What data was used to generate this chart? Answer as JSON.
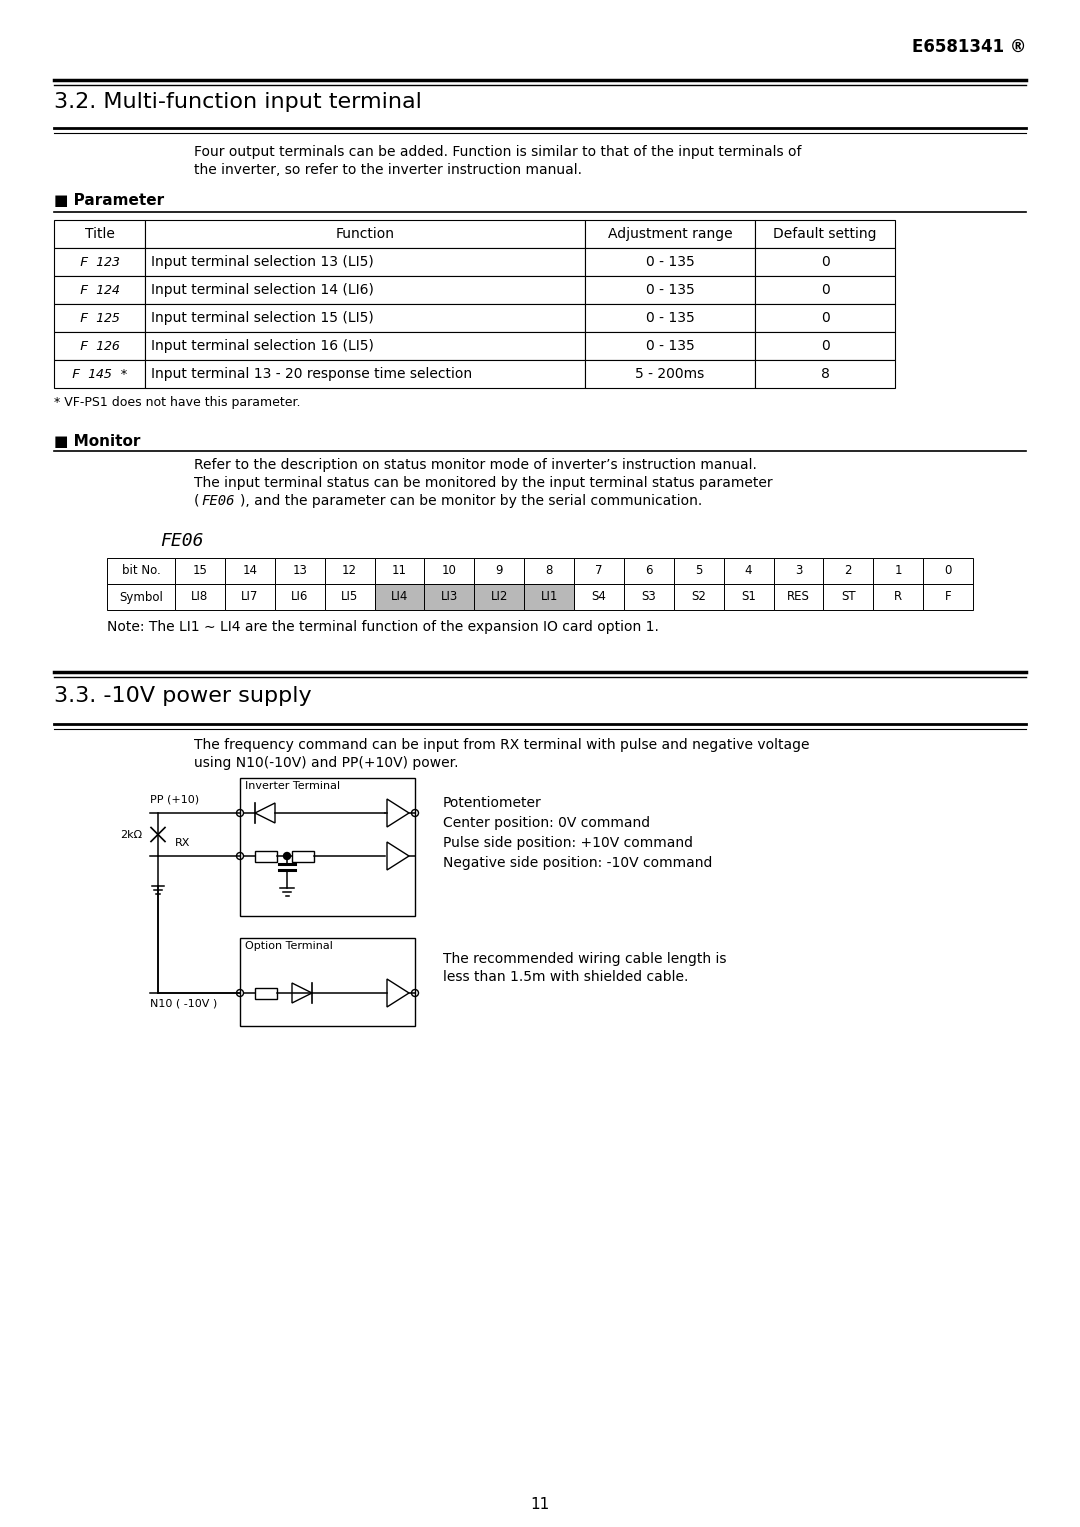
{
  "page_number": "11",
  "header_text": "E6581341 ®",
  "section1_title": "3.2. Multi-function input terminal",
  "section1_intro_line1": "Four output terminals can be added. Function is similar to that of the input terminals of",
  "section1_intro_line2": "the inverter, so refer to the inverter instruction manual.",
  "param_label": "■ Parameter",
  "table_headers": [
    "Title",
    "Function",
    "Adjustment range",
    "Default setting"
  ],
  "table_rows": [
    [
      "F 123",
      "Input terminal selection 13 (LI5)",
      "0 - 135",
      "0"
    ],
    [
      "F 124",
      "Input terminal selection 14 (LI6)",
      "0 - 135",
      "0"
    ],
    [
      "F 125",
      "Input terminal selection 15 (LI5)",
      "0 - 135",
      "0"
    ],
    [
      "F 126",
      "Input terminal selection 16 (LI5)",
      "0 - 135",
      "0"
    ],
    [
      "F 145 *",
      "Input terminal 13 - 20 response time selection",
      "5 - 200ms",
      "8"
    ]
  ],
  "footnote": "* VF-PS1 does not have this parameter.",
  "monitor_label": "■ Monitor",
  "monitor_text1": "Refer to the description on status monitor mode of inverter’s instruction manual.",
  "monitor_text2a": "The input terminal status can be monitored by the input terminal status parameter",
  "monitor_text2b": "(FE06), and the parameter can be monitor by the serial communication.",
  "fe06_label": "FE06",
  "bit_table_row1": [
    "bit No.",
    "15",
    "14",
    "13",
    "12",
    "11",
    "10",
    "9",
    "8",
    "7",
    "6",
    "5",
    "4",
    "3",
    "2",
    "1",
    "0"
  ],
  "bit_table_row2": [
    "Symbol",
    "LI8",
    "LI7",
    "LI6",
    "LI5",
    "LI4",
    "LI3",
    "LI2",
    "LI1",
    "S4",
    "S3",
    "S2",
    "S1",
    "RES",
    "ST",
    "R",
    "F"
  ],
  "bit_highlight_cols": [
    5,
    6,
    7,
    8
  ],
  "bit_note": "Note: The LI1 ∼ LI4 are the terminal function of the expansion IO card option 1.",
  "section2_title": "3.3. -10V power supply",
  "section2_intro_line1": "The frequency command can be input from RX terminal with pulse and negative voltage",
  "section2_intro_line2": "using N10(-10V) and PP(+10V) power.",
  "diagram_labels": {
    "inverter_terminal": "Inverter Terminal",
    "option_terminal": "Option Terminal",
    "pp_label": "PP (+10)",
    "rx_label": "RX",
    "n10_label": "N10 ( -10V )",
    "r2k_label": "2kΩ"
  },
  "right_text": [
    "Potentiometer",
    "Center position: 0V command",
    "Pulse side position: +10V command",
    "Negative side position: -10V command"
  ],
  "right_text2a": "The recommended wiring cable length is",
  "right_text2b": "less than 1.5m with shielded cable.",
  "bg_color": "#ffffff",
  "text_color": "#000000",
  "highlight_color": "#b8b8b8",
  "line_color": "#000000"
}
